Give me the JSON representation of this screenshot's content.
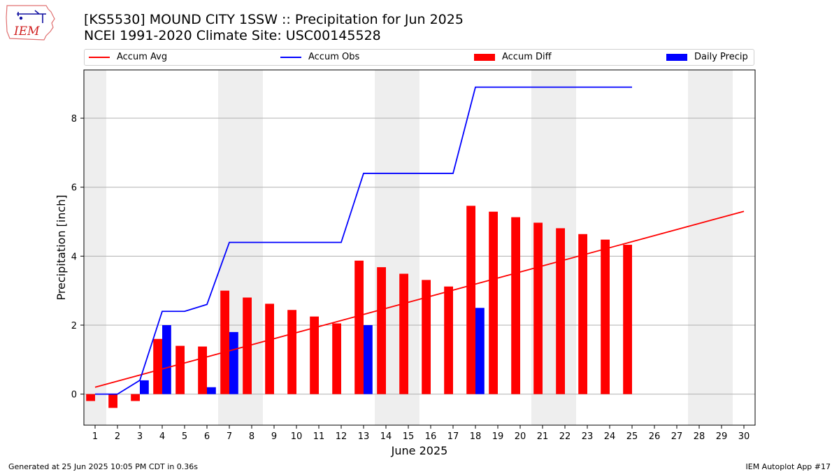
{
  "header": {
    "title_line1": "[KS5530] MOUND CITY 1SSW :: Precipitation for Jun 2025",
    "title_line2": "NCEI 1991-2020 Climate Site: USC00145528",
    "logo_text": "IEM"
  },
  "footer": {
    "left": "Generated at 25 Jun 2025 10:05 PM CDT in 0.36s",
    "right": "IEM Autoplot App #17"
  },
  "chart_data": {
    "type": "bar",
    "xlabel": "June 2025",
    "ylabel": "Precipitation [inch]",
    "xlim": [
      0.5,
      30.5
    ],
    "ylim": [
      -0.9,
      9.4
    ],
    "x_ticks": [
      1,
      2,
      3,
      4,
      5,
      6,
      7,
      8,
      9,
      10,
      11,
      12,
      13,
      14,
      15,
      16,
      17,
      18,
      19,
      20,
      21,
      22,
      23,
      24,
      25,
      26,
      27,
      28,
      29,
      30
    ],
    "y_ticks": [
      0,
      2,
      4,
      6,
      8
    ],
    "grid": "horizontal",
    "weekend_shading_days": [
      1,
      7,
      8,
      14,
      15,
      21,
      22,
      28,
      29
    ],
    "legend_position": "top",
    "legend": [
      "Accum Avg",
      "Accum Obs",
      "Accum Diff",
      "Daily Precip"
    ],
    "colors": {
      "accum_avg": "#ff0000",
      "accum_obs": "#0000ff",
      "accum_diff": "#ff0000",
      "daily_precip": "#0000ff",
      "weekend_shade": "#eeeeee",
      "grid": "#b0b0b0"
    },
    "series": [
      {
        "name": "Accum Avg",
        "kind": "line",
        "x": [
          1,
          30
        ],
        "values": [
          0.2,
          5.3
        ]
      },
      {
        "name": "Accum Obs",
        "kind": "line",
        "x": [
          1,
          2,
          3,
          4,
          5,
          6,
          7,
          8,
          9,
          10,
          11,
          12,
          13,
          14,
          15,
          16,
          17,
          18,
          19,
          20,
          21,
          22,
          23,
          24,
          25
        ],
        "values": [
          0.0,
          0.0,
          0.4,
          2.4,
          2.4,
          2.6,
          4.4,
          4.4,
          4.4,
          4.4,
          4.4,
          4.4,
          6.4,
          6.4,
          6.4,
          6.4,
          6.4,
          8.9,
          8.9,
          8.9,
          8.9,
          8.9,
          8.9,
          8.9,
          8.9
        ]
      },
      {
        "name": "Accum Diff",
        "kind": "bar",
        "x": [
          1,
          2,
          3,
          4,
          5,
          6,
          7,
          8,
          9,
          10,
          11,
          12,
          13,
          14,
          15,
          16,
          17,
          18,
          19,
          20,
          21,
          22,
          23,
          24,
          25
        ],
        "values": [
          -0.2,
          -0.4,
          -0.2,
          1.6,
          1.4,
          1.38,
          3.0,
          2.8,
          2.62,
          2.44,
          2.25,
          2.05,
          3.87,
          3.68,
          3.49,
          3.31,
          3.12,
          5.46,
          5.29,
          5.13,
          4.97,
          4.81,
          4.64,
          4.48,
          4.33
        ]
      },
      {
        "name": "Daily Precip",
        "kind": "bar",
        "x": [
          3,
          4,
          6,
          7,
          13,
          18
        ],
        "values": [
          0.4,
          2.0,
          0.2,
          1.8,
          2.0,
          2.5
        ]
      }
    ]
  }
}
